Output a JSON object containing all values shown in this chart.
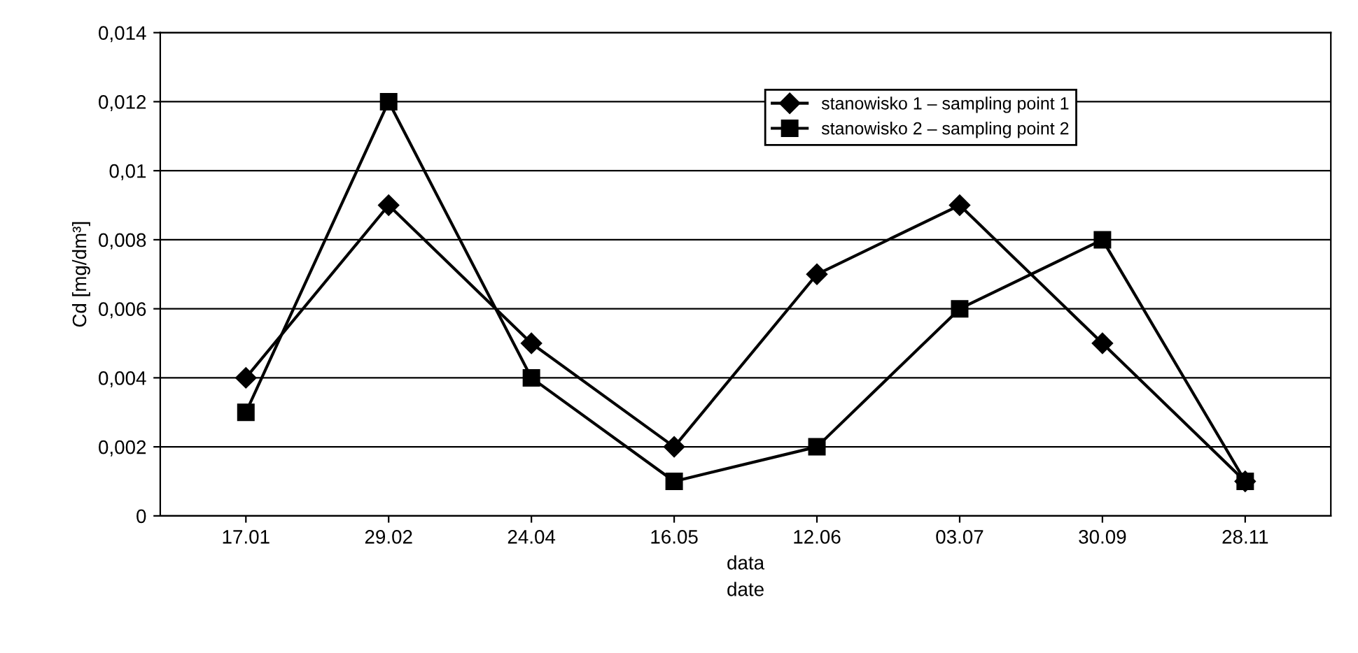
{
  "chart_data": {
    "type": "line",
    "xlabel": "data\ndate",
    "ylabel": "Cd [mg/dm³]",
    "categories": [
      "17.01",
      "29.02",
      "24.04",
      "16.05",
      "12.06",
      "03.07",
      "30.09",
      "28.11"
    ],
    "series": [
      {
        "name": "stanowisko 1 – sampling point 1",
        "color": "#000000",
        "marker": "diamond",
        "values": [
          0.004,
          0.009,
          0.005,
          0.002,
          0.007,
          0.009,
          0.005,
          0.001
        ]
      },
      {
        "name": "stanowisko 2 – sampling point 2",
        "color": "#000000",
        "marker": "square",
        "values": [
          0.003,
          0.012,
          0.004,
          0.001,
          0.002,
          0.006,
          0.008,
          0.001
        ]
      }
    ],
    "ylim": [
      0,
      0.014
    ],
    "yticks": [
      0,
      {
        "value": 0.002,
        "label": "0,002"
      },
      {
        "value": 0.004,
        "label": "0,004"
      },
      {
        "value": 0.006,
        "label": "0,006"
      },
      {
        "value": 0.008,
        "label": "0,008"
      },
      {
        "value": 0.01,
        "label": "0,01"
      },
      {
        "value": 0.012,
        "label": "0,012"
      },
      {
        "value": 0.014,
        "label": "0,014"
      }
    ],
    "grid": "y",
    "legend": "top right",
    "line_style": "solid"
  }
}
